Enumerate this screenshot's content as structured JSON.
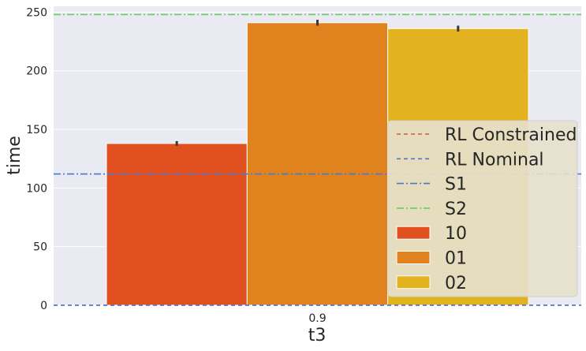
{
  "colors": {
    "background": "#ffffff",
    "plot_bg": "#eaeaf2",
    "grid": "#ffffff",
    "text": "#262626",
    "error_bar": "#3a3a3a",
    "legend_bg": "#e6e0cc",
    "legend_border": "#d0d0d0"
  },
  "chart_data": {
    "type": "bar",
    "title": "",
    "xlabel": "t3",
    "ylabel": "time",
    "categories": [
      "0.9"
    ],
    "ylim": [
      0,
      255
    ],
    "yticks": [
      0,
      50,
      100,
      150,
      200,
      250
    ],
    "ytick_labels": [
      "0",
      "50",
      "100",
      "150",
      "200",
      "250"
    ],
    "grid": true,
    "legend_placement": "center-right",
    "series": [
      {
        "name": "10",
        "values": [
          138
        ],
        "error": [
          2
        ],
        "color": "#e0511f"
      },
      {
        "name": "01",
        "values": [
          241
        ],
        "error": [
          2.5
        ],
        "color": "#e0831f"
      },
      {
        "name": "02",
        "values": [
          236
        ],
        "error": [
          2.5
        ],
        "color": "#e3b21f"
      }
    ],
    "reference_lines": [
      {
        "name": "RL Constrained",
        "y": 0,
        "style": "dashed",
        "color": "#d9534f"
      },
      {
        "name": "RL Nominal",
        "y": 0,
        "style": "dashed",
        "color": "#4878cf"
      },
      {
        "name": "S1",
        "y": 112,
        "style": "dashdot",
        "color": "#4878cf"
      },
      {
        "name": "S2",
        "y": 248,
        "style": "dashdot",
        "color": "#6acc65"
      }
    ]
  }
}
